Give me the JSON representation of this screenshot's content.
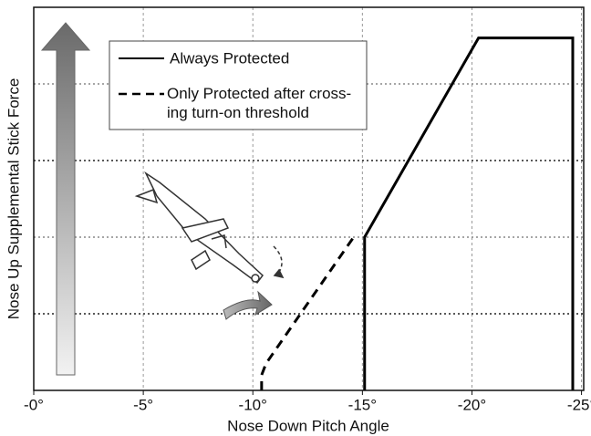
{
  "chart_data": {
    "type": "line",
    "x_label": "Nose Down Pitch Angle",
    "y_label": "Nose Up Supplemental Stick Force",
    "xlim": [
      0,
      -25.1
    ],
    "ylim": [
      0,
      5
    ],
    "xticks": [
      {
        "value": 0,
        "label": "-0°"
      },
      {
        "value": -5,
        "label": "-5°"
      },
      {
        "value": -10,
        "label": "-10°"
      },
      {
        "value": -15,
        "label": "-15°"
      },
      {
        "value": -20,
        "label": "-20°"
      },
      {
        "value": -25,
        "label": "-25°"
      }
    ],
    "yticks": [
      1,
      2,
      3,
      4
    ],
    "grid": true,
    "series": [
      {
        "name": "Always Protected",
        "color": "#000000",
        "line_style": "solid",
        "x": [
          -15.1,
          -15.1,
          -20.3,
          -24.6,
          -24.6
        ],
        "values": [
          0,
          2.0,
          4.6,
          4.6,
          0
        ]
      },
      {
        "name": "Only Protected after cross-ing turn-on threshold",
        "color": "#000000",
        "line_style": "dashed",
        "x": [
          -10.4,
          -10.4,
          -10.6,
          -14.6
        ],
        "values": [
          0,
          0.2,
          0.35,
          2.0
        ]
      }
    ]
  }
}
